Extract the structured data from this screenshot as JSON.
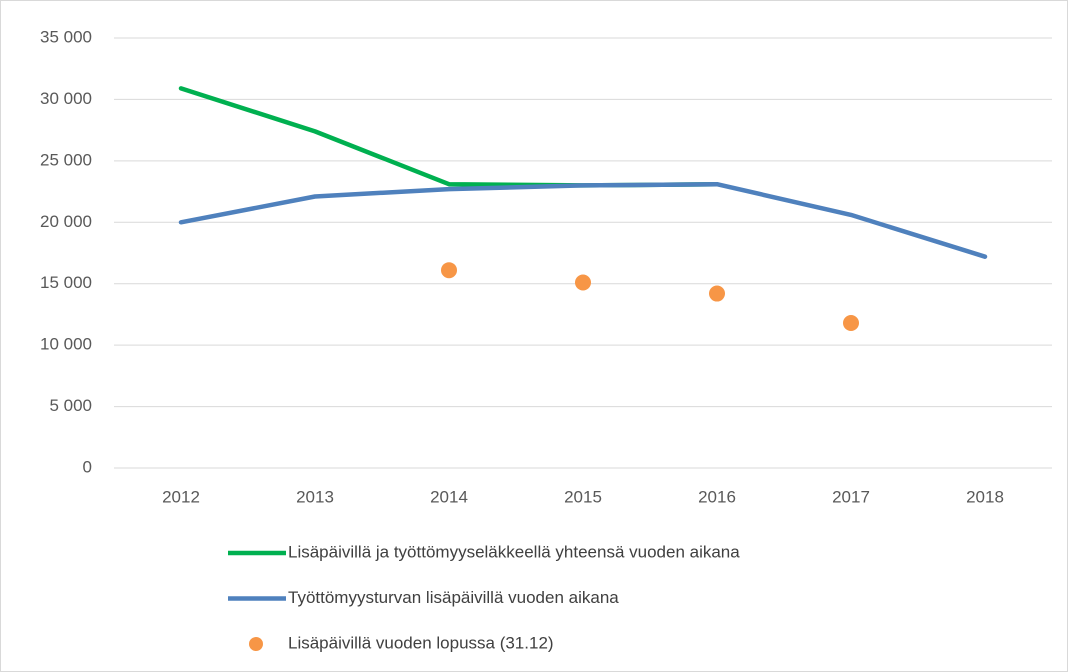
{
  "chart_data": {
    "type": "line",
    "categories": [
      "2012",
      "2013",
      "2014",
      "2015",
      "2016",
      "2017",
      "2018"
    ],
    "series": [
      {
        "name": "Lisäpäivillä ja työttömyyseläkkeellä yhteensä vuoden aikana",
        "color": "#00b050",
        "type": "line",
        "values": [
          30900,
          27400,
          23100,
          23000,
          23100,
          null,
          null
        ]
      },
      {
        "name": "Työttömyysturvan lisäpäivillä vuoden aikana",
        "color": "#4f81bd",
        "type": "line",
        "values": [
          20000,
          22100,
          22700,
          23000,
          23100,
          20600,
          17200
        ]
      },
      {
        "name": "Lisäpäivillä vuoden lopussa (31.12)",
        "color": "#f79646",
        "type": "scatter",
        "values": [
          null,
          null,
          16100,
          15100,
          14200,
          11800,
          null
        ]
      }
    ],
    "ylim": [
      0,
      35000
    ],
    "yticks": [
      0,
      {
        "value": 5000,
        "label": "5 000"
      },
      {
        "value": 10000,
        "label": "10 000"
      },
      {
        "value": 15000,
        "label": "15 000"
      },
      {
        "value": 20000,
        "label": "20 000"
      },
      {
        "value": 25000,
        "label": "25 000"
      },
      {
        "value": 30000,
        "label": "30 000"
      },
      {
        "value": 35000,
        "label": "35 000"
      }
    ],
    "grid": true,
    "legend": "bottom"
  }
}
